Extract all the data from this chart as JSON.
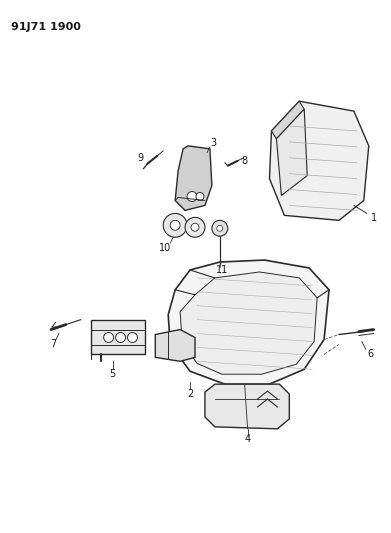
{
  "title": "91J71 1900",
  "background_color": "#ffffff",
  "line_color": "#2a2a2a",
  "text_color": "#1a1a1a",
  "figsize": [
    3.91,
    5.33
  ],
  "dpi": 100
}
